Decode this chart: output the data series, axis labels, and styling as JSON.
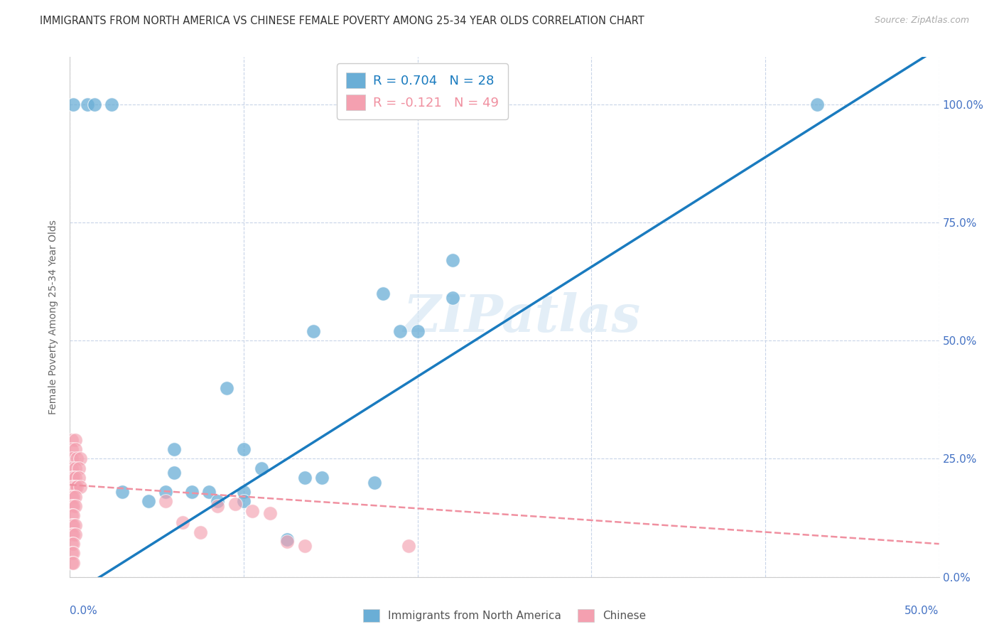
{
  "title": "IMMIGRANTS FROM NORTH AMERICA VS CHINESE FEMALE POVERTY AMONG 25-34 YEAR OLDS CORRELATION CHART",
  "source": "Source: ZipAtlas.com",
  "ylabel": "Female Poverty Among 25-34 Year Olds",
  "legend_label_blue": "Immigrants from North America",
  "legend_label_pink": "Chinese",
  "R_blue": 0.704,
  "N_blue": 28,
  "R_pink": -0.121,
  "N_pink": 49,
  "blue_color": "#6aaed6",
  "pink_color": "#f4a0b0",
  "blue_line_color": "#1a7bbf",
  "pink_line_color": "#f090a0",
  "blue_scatter": [
    [
      0.002,
      1.0
    ],
    [
      0.01,
      1.0
    ],
    [
      0.014,
      1.0
    ],
    [
      0.024,
      1.0
    ],
    [
      0.43,
      1.0
    ],
    [
      0.22,
      0.67
    ],
    [
      0.18,
      0.6
    ],
    [
      0.22,
      0.59
    ],
    [
      0.14,
      0.52
    ],
    [
      0.19,
      0.52
    ],
    [
      0.2,
      0.52
    ],
    [
      0.09,
      0.4
    ],
    [
      0.06,
      0.27
    ],
    [
      0.1,
      0.27
    ],
    [
      0.06,
      0.22
    ],
    [
      0.11,
      0.23
    ],
    [
      0.03,
      0.18
    ],
    [
      0.055,
      0.18
    ],
    [
      0.07,
      0.18
    ],
    [
      0.08,
      0.18
    ],
    [
      0.1,
      0.18
    ],
    [
      0.045,
      0.16
    ],
    [
      0.085,
      0.16
    ],
    [
      0.1,
      0.16
    ],
    [
      0.135,
      0.21
    ],
    [
      0.145,
      0.21
    ],
    [
      0.175,
      0.2
    ],
    [
      0.125,
      0.08
    ]
  ],
  "pink_scatter": [
    [
      0.001,
      0.29
    ],
    [
      0.003,
      0.29
    ],
    [
      0.001,
      0.27
    ],
    [
      0.003,
      0.27
    ],
    [
      0.001,
      0.25
    ],
    [
      0.004,
      0.25
    ],
    [
      0.006,
      0.25
    ],
    [
      0.001,
      0.23
    ],
    [
      0.003,
      0.23
    ],
    [
      0.005,
      0.23
    ],
    [
      0.001,
      0.21
    ],
    [
      0.002,
      0.21
    ],
    [
      0.003,
      0.21
    ],
    [
      0.005,
      0.21
    ],
    [
      0.001,
      0.19
    ],
    [
      0.002,
      0.19
    ],
    [
      0.003,
      0.19
    ],
    [
      0.004,
      0.19
    ],
    [
      0.006,
      0.19
    ],
    [
      0.001,
      0.17
    ],
    [
      0.002,
      0.17
    ],
    [
      0.003,
      0.17
    ],
    [
      0.001,
      0.15
    ],
    [
      0.002,
      0.15
    ],
    [
      0.003,
      0.15
    ],
    [
      0.001,
      0.13
    ],
    [
      0.002,
      0.13
    ],
    [
      0.001,
      0.11
    ],
    [
      0.002,
      0.11
    ],
    [
      0.003,
      0.11
    ],
    [
      0.001,
      0.09
    ],
    [
      0.002,
      0.09
    ],
    [
      0.003,
      0.09
    ],
    [
      0.001,
      0.07
    ],
    [
      0.002,
      0.07
    ],
    [
      0.001,
      0.05
    ],
    [
      0.002,
      0.05
    ],
    [
      0.001,
      0.03
    ],
    [
      0.002,
      0.03
    ],
    [
      0.055,
      0.16
    ],
    [
      0.065,
      0.115
    ],
    [
      0.075,
      0.095
    ],
    [
      0.085,
      0.15
    ],
    [
      0.095,
      0.155
    ],
    [
      0.105,
      0.14
    ],
    [
      0.115,
      0.135
    ],
    [
      0.125,
      0.075
    ],
    [
      0.135,
      0.065
    ],
    [
      0.195,
      0.065
    ]
  ],
  "blue_line": [
    0.0,
    -0.04,
    0.5,
    1.12
  ],
  "pink_line": [
    0.0,
    0.195,
    0.5,
    0.07
  ],
  "xlim": [
    0.0,
    0.5
  ],
  "ylim": [
    0.0,
    1.1
  ],
  "background_color": "#ffffff",
  "grid_color": "#c8d4e8",
  "title_color": "#333333",
  "axis_label_color": "#4472c4",
  "right_axis_color": "#4472c4"
}
